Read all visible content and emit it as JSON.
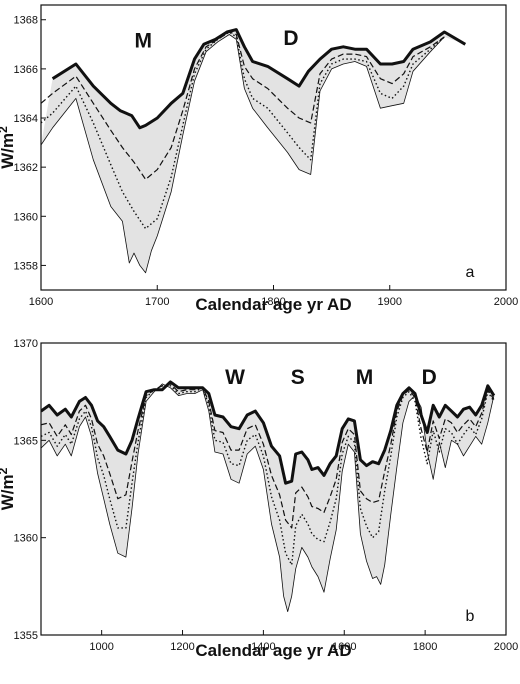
{
  "chart_data": [
    {
      "type": "area",
      "panel_label": "a",
      "xlabel": "Calendar age yr AD",
      "ylabel": "W/m2",
      "xlim": [
        1600,
        2000
      ],
      "ylim": [
        1357,
        1368.6
      ],
      "xticks": [
        1600,
        1700,
        1800,
        1900,
        2000
      ],
      "yticks": [
        1358,
        1360,
        1362,
        1364,
        1366,
        1368
      ],
      "grid": false,
      "annotations": [
        {
          "text": "M",
          "x": 1688,
          "y": 1367.2
        },
        {
          "text": "D",
          "x": 1815,
          "y": 1367.3
        }
      ],
      "series": [
        {
          "style": "thick",
          "x": [
            1610,
            1630,
            1645,
            1660,
            1668,
            1678,
            1685,
            1690,
            1700,
            1712,
            1722,
            1732,
            1740,
            1750,
            1760,
            1768,
            1775,
            1782,
            1795,
            1812,
            1822,
            1830,
            1840,
            1850,
            1860,
            1870,
            1880,
            1892,
            1902,
            1912,
            1920,
            1935,
            1947,
            1965
          ],
          "y": [
            1365.6,
            1366.2,
            1365.3,
            1364.6,
            1364.3,
            1364.1,
            1363.6,
            1363.7,
            1364.0,
            1364.6,
            1365.0,
            1366.4,
            1367.0,
            1367.2,
            1367.5,
            1367.6,
            1366.9,
            1366.3,
            1366.1,
            1365.6,
            1365.3,
            1365.9,
            1366.4,
            1366.8,
            1366.9,
            1366.8,
            1366.8,
            1366.2,
            1366.2,
            1366.3,
            1366.8,
            1367.1,
            1367.5,
            1367.0
          ]
        },
        {
          "style": "dashed",
          "x": [
            1600,
            1610,
            1630,
            1645,
            1660,
            1670,
            1680,
            1690,
            1700,
            1712,
            1722,
            1732,
            1742,
            1752,
            1762,
            1768,
            1775,
            1782,
            1795,
            1812,
            1822,
            1832,
            1840,
            1850,
            1860,
            1870,
            1880,
            1892,
            1902,
            1912,
            1920,
            1935,
            1947
          ],
          "y": [
            1364.6,
            1365.0,
            1365.7,
            1364.6,
            1363.5,
            1362.8,
            1362.2,
            1361.5,
            1361.9,
            1362.8,
            1364.3,
            1366.0,
            1366.9,
            1367.2,
            1367.5,
            1367.4,
            1366.1,
            1365.6,
            1365.2,
            1364.4,
            1364.0,
            1363.8,
            1365.8,
            1366.4,
            1366.6,
            1366.6,
            1366.5,
            1365.6,
            1365.4,
            1365.8,
            1366.5,
            1366.9,
            1367.3
          ]
        },
        {
          "style": "dotted",
          "x": [
            1600,
            1610,
            1630,
            1645,
            1660,
            1670,
            1680,
            1690,
            1700,
            1712,
            1722,
            1732,
            1742,
            1752,
            1762,
            1768,
            1775,
            1782,
            1795,
            1812,
            1822,
            1832,
            1840,
            1850,
            1860,
            1870,
            1880,
            1892,
            1902,
            1912,
            1920,
            1935,
            1947
          ],
          "y": [
            1363.8,
            1364.2,
            1365.3,
            1363.8,
            1362.1,
            1361.0,
            1360.2,
            1359.5,
            1359.9,
            1361.6,
            1363.7,
            1365.8,
            1366.8,
            1367.2,
            1367.5,
            1367.3,
            1365.6,
            1364.8,
            1364.4,
            1363.4,
            1362.8,
            1362.3,
            1365.4,
            1366.2,
            1366.4,
            1366.4,
            1366.3,
            1365.0,
            1364.8,
            1365.3,
            1366.2,
            1366.8,
            1367.3
          ]
        },
        {
          "style": "thin",
          "x": [
            1600,
            1610,
            1630,
            1645,
            1660,
            1670,
            1676,
            1680,
            1685,
            1690,
            1695,
            1700,
            1712,
            1722,
            1732,
            1742,
            1752,
            1762,
            1768,
            1775,
            1782,
            1795,
            1812,
            1822,
            1832,
            1840,
            1850,
            1860,
            1870,
            1880,
            1892,
            1902,
            1912,
            1920,
            1935,
            1947
          ],
          "y": [
            1362.9,
            1363.6,
            1364.8,
            1362.3,
            1360.4,
            1359.8,
            1358.1,
            1358.5,
            1358.0,
            1357.7,
            1358.6,
            1359.2,
            1361.0,
            1363.3,
            1365.5,
            1366.7,
            1367.1,
            1367.4,
            1367.2,
            1365.2,
            1364.4,
            1363.6,
            1362.6,
            1361.9,
            1361.7,
            1365.1,
            1366.0,
            1366.2,
            1366.3,
            1366.1,
            1364.4,
            1364.5,
            1364.6,
            1365.9,
            1366.7,
            1367.3
          ]
        }
      ]
    },
    {
      "type": "area",
      "panel_label": "b",
      "xlabel": "Calendar age yr AD",
      "ylabel": "W/m2",
      "xlim": [
        850,
        2000
      ],
      "ylim": [
        1355,
        1370
      ],
      "xticks": [
        1000,
        1200,
        1400,
        1600,
        1800,
        2000
      ],
      "yticks": [
        1355,
        1360,
        1365,
        1370
      ],
      "grid": false,
      "annotations": [
        {
          "text": "W",
          "x": 1330,
          "y": 1368.3
        },
        {
          "text": "S",
          "x": 1485,
          "y": 1368.3
        },
        {
          "text": "M",
          "x": 1650,
          "y": 1368.3
        },
        {
          "text": "D",
          "x": 1810,
          "y": 1368.3
        }
      ],
      "series": [
        {
          "style": "thick",
          "x": [
            850,
            870,
            890,
            910,
            925,
            945,
            960,
            975,
            990,
            1005,
            1020,
            1040,
            1060,
            1075,
            1090,
            1110,
            1130,
            1150,
            1170,
            1190,
            1210,
            1230,
            1250,
            1265,
            1280,
            1300,
            1320,
            1340,
            1360,
            1380,
            1400,
            1420,
            1440,
            1455,
            1470,
            1480,
            1495,
            1510,
            1520,
            1535,
            1550,
            1565,
            1580,
            1595,
            1610,
            1625,
            1640,
            1655,
            1670,
            1685,
            1700,
            1715,
            1730,
            1745,
            1760,
            1775,
            1790,
            1805,
            1820,
            1835,
            1850,
            1865,
            1880,
            1895,
            1910,
            1925,
            1940,
            1955,
            1970
          ],
          "y": [
            1366.5,
            1366.8,
            1366.3,
            1366.6,
            1366.2,
            1367.0,
            1367.2,
            1366.8,
            1366.0,
            1365.7,
            1365.2,
            1364.5,
            1364.3,
            1365.0,
            1366.1,
            1367.5,
            1367.6,
            1367.6,
            1368.0,
            1367.7,
            1367.7,
            1367.7,
            1367.7,
            1367.4,
            1366.3,
            1366.2,
            1365.7,
            1365.6,
            1366.3,
            1366.5,
            1365.9,
            1364.7,
            1364.2,
            1362.8,
            1362.9,
            1364.3,
            1364.4,
            1364.0,
            1363.5,
            1363.6,
            1363.2,
            1363.8,
            1364.2,
            1365.6,
            1366.1,
            1366.0,
            1364.0,
            1363.7,
            1363.9,
            1363.8,
            1364.5,
            1365.5,
            1366.8,
            1367.4,
            1367.7,
            1367.4,
            1366.3,
            1365.4,
            1366.8,
            1366.2,
            1366.8,
            1366.5,
            1366.2,
            1366.6,
            1366.7,
            1366.3,
            1366.8,
            1367.8,
            1367.3
          ]
        },
        {
          "style": "dashed",
          "x": [
            850,
            870,
            890,
            910,
            925,
            945,
            960,
            975,
            990,
            1005,
            1020,
            1040,
            1060,
            1075,
            1090,
            1110,
            1130,
            1150,
            1170,
            1190,
            1210,
            1230,
            1250,
            1265,
            1280,
            1300,
            1320,
            1340,
            1360,
            1380,
            1400,
            1420,
            1440,
            1455,
            1470,
            1480,
            1495,
            1510,
            1520,
            1535,
            1550,
            1565,
            1580,
            1595,
            1610,
            1625,
            1640,
            1655,
            1670,
            1685,
            1700,
            1715,
            1730,
            1745,
            1760,
            1775,
            1790,
            1805,
            1820,
            1835,
            1850,
            1865,
            1880,
            1895,
            1910,
            1925,
            1940,
            1955,
            1970
          ],
          "y": [
            1365.8,
            1365.9,
            1365.2,
            1365.8,
            1365.3,
            1366.5,
            1366.8,
            1366.1,
            1364.8,
            1364.2,
            1363.3,
            1362.0,
            1362.2,
            1363.9,
            1365.5,
            1367.3,
            1367.6,
            1367.8,
            1367.9,
            1367.5,
            1367.6,
            1367.6,
            1367.7,
            1367.0,
            1365.5,
            1365.4,
            1364.5,
            1364.5,
            1365.6,
            1365.8,
            1364.8,
            1363.2,
            1362.2,
            1360.9,
            1360.5,
            1362.3,
            1362.6,
            1362.1,
            1361.6,
            1361.5,
            1361.3,
            1362.1,
            1363.0,
            1364.9,
            1365.6,
            1365.3,
            1362.4,
            1362.0,
            1361.8,
            1361.9,
            1363.4,
            1364.8,
            1366.5,
            1367.3,
            1367.6,
            1367.2,
            1365.6,
            1364.4,
            1366.0,
            1365.1,
            1366.1,
            1365.9,
            1365.4,
            1365.8,
            1366.1,
            1365.7,
            1366.4,
            1367.6,
            1367.1
          ]
        },
        {
          "style": "dotted",
          "x": [
            850,
            870,
            890,
            910,
            925,
            945,
            960,
            975,
            990,
            1005,
            1020,
            1040,
            1060,
            1075,
            1090,
            1110,
            1130,
            1150,
            1170,
            1190,
            1210,
            1230,
            1250,
            1265,
            1280,
            1300,
            1320,
            1340,
            1360,
            1380,
            1400,
            1420,
            1440,
            1455,
            1470,
            1480,
            1495,
            1510,
            1520,
            1535,
            1550,
            1565,
            1580,
            1595,
            1610,
            1625,
            1640,
            1655,
            1670,
            1685,
            1700,
            1715,
            1730,
            1745,
            1760,
            1775,
            1790,
            1805,
            1820,
            1835,
            1850,
            1865,
            1880,
            1895,
            1910,
            1925,
            1940,
            1955,
            1970
          ],
          "y": [
            1365.2,
            1365.4,
            1364.7,
            1365.3,
            1364.8,
            1366.1,
            1366.5,
            1365.7,
            1364.1,
            1363.2,
            1362.0,
            1360.5,
            1360.5,
            1362.8,
            1364.9,
            1367.2,
            1367.6,
            1367.8,
            1367.8,
            1367.4,
            1367.5,
            1367.5,
            1367.7,
            1366.8,
            1365.0,
            1364.9,
            1363.8,
            1363.7,
            1365.0,
            1365.3,
            1364.2,
            1362.1,
            1360.9,
            1359.2,
            1358.6,
            1360.6,
            1361.2,
            1360.7,
            1360.2,
            1359.9,
            1359.8,
            1360.8,
            1362.0,
            1364.3,
            1365.2,
            1364.9,
            1361.5,
            1360.6,
            1360.0,
            1360.3,
            1362.4,
            1364.2,
            1366.2,
            1367.2,
            1367.5,
            1367.0,
            1365.1,
            1363.8,
            1365.5,
            1364.4,
            1365.6,
            1365.4,
            1364.8,
            1365.3,
            1365.7,
            1365.3,
            1366.1,
            1367.5,
            1367.0
          ]
        },
        {
          "style": "thin",
          "x": [
            850,
            870,
            890,
            910,
            925,
            945,
            960,
            975,
            990,
            1005,
            1020,
            1040,
            1060,
            1075,
            1090,
            1110,
            1130,
            1150,
            1170,
            1190,
            1210,
            1230,
            1250,
            1265,
            1280,
            1300,
            1320,
            1340,
            1360,
            1380,
            1400,
            1420,
            1440,
            1450,
            1460,
            1470,
            1480,
            1495,
            1510,
            1520,
            1535,
            1550,
            1565,
            1580,
            1595,
            1610,
            1625,
            1640,
            1655,
            1670,
            1680,
            1690,
            1700,
            1715,
            1730,
            1745,
            1760,
            1775,
            1790,
            1805,
            1820,
            1835,
            1850,
            1865,
            1880,
            1895,
            1910,
            1925,
            1940,
            1955,
            1970
          ],
          "y": [
            1364.6,
            1365.0,
            1364.2,
            1364.8,
            1364.2,
            1365.7,
            1366.2,
            1365.2,
            1363.3,
            1362.0,
            1360.7,
            1359.2,
            1359.0,
            1361.5,
            1364.3,
            1367.0,
            1367.5,
            1367.9,
            1367.7,
            1367.3,
            1367.4,
            1367.4,
            1367.6,
            1366.5,
            1364.4,
            1364.3,
            1363.0,
            1362.8,
            1364.3,
            1364.7,
            1363.5,
            1360.7,
            1359.0,
            1357.0,
            1356.2,
            1357.0,
            1358.4,
            1359.5,
            1359.0,
            1358.5,
            1358.0,
            1357.2,
            1358.9,
            1360.4,
            1363.4,
            1364.8,
            1364.4,
            1360.2,
            1358.8,
            1357.9,
            1358.0,
            1357.6,
            1358.6,
            1361.2,
            1363.6,
            1365.9,
            1367.0,
            1367.3,
            1366.7,
            1364.4,
            1363.0,
            1364.9,
            1363.6,
            1365.0,
            1364.8,
            1364.2,
            1364.7,
            1365.2,
            1364.8,
            1365.9,
            1367.3
          ]
        }
      ]
    }
  ]
}
